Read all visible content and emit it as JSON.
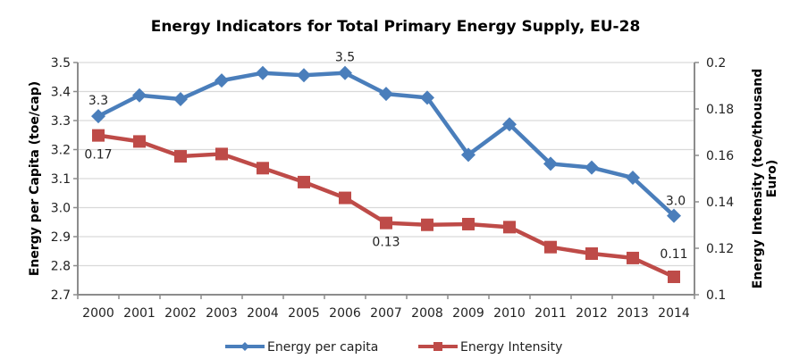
{
  "chart_data": {
    "type": "line",
    "title": "Energy Indicators for Total Primary Energy Supply, EU-28",
    "xlabel": "",
    "categories": [
      "2000",
      "2001",
      "2002",
      "2003",
      "2004",
      "2005",
      "2006",
      "2007",
      "2008",
      "2009",
      "2010",
      "2011",
      "2012",
      "2013",
      "2014"
    ],
    "y_left": {
      "label": "Energy per Capita (toe/cap)",
      "range": [
        2.7,
        3.5
      ],
      "ticks": [
        "2.7",
        "2.8",
        "2.9",
        "3.0",
        "3.1",
        "3.2",
        "3.3",
        "3.4",
        "3.5"
      ],
      "tick_values": [
        2.7,
        2.8,
        2.9,
        3.0,
        3.1,
        3.2,
        3.3,
        3.4,
        3.5
      ]
    },
    "y_right": {
      "label_line1": "Energy Intensity (toe/thousand",
      "label_line2": "Euro)",
      "range": [
        0.1,
        0.2
      ],
      "ticks": [
        "0.1",
        "0.12",
        "0.14",
        "0.16",
        "0.18",
        "0.2"
      ],
      "tick_values": [
        0.1,
        0.12,
        0.14,
        0.16,
        0.18,
        0.2
      ]
    },
    "grid": true,
    "legend_position": "bottom",
    "series": [
      {
        "name": "Energy per capita",
        "axis": "left",
        "color": "#4a7ebb",
        "marker": "diamond",
        "values": [
          3.315,
          3.387,
          3.374,
          3.438,
          3.464,
          3.456,
          3.464,
          3.392,
          3.379,
          3.182,
          3.287,
          3.151,
          3.138,
          3.103,
          2.972
        ],
        "data_labels": [
          {
            "index": 0,
            "text": "3.3"
          },
          {
            "index": 6,
            "text": "3.5"
          },
          {
            "index": 14,
            "text": "3.0"
          }
        ]
      },
      {
        "name": "Energy Intensity",
        "axis": "right",
        "color": "#be4b48",
        "marker": "square",
        "values": [
          0.1686,
          0.166,
          0.1596,
          0.1606,
          0.1545,
          0.1485,
          0.1417,
          0.1309,
          0.1301,
          0.1304,
          0.1291,
          0.1205,
          0.1177,
          0.1158,
          0.1077
        ],
        "data_labels": [
          {
            "index": 0,
            "text": "0.17"
          },
          {
            "index": 7,
            "text": "0.13"
          },
          {
            "index": 14,
            "text": "0.11"
          }
        ]
      }
    ]
  }
}
